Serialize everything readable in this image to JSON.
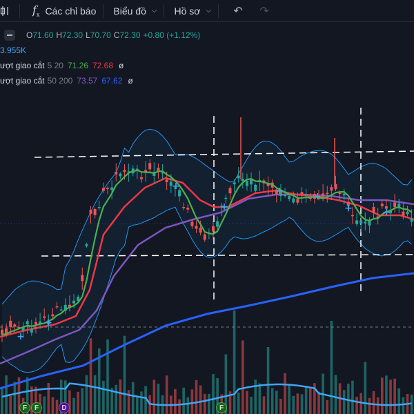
{
  "toolbar": {
    "indicators_label": "Các chỉ báo",
    "chart_label": "Biểu đồ",
    "profile_label": "Hồ sơ"
  },
  "legend": {
    "ohlc": {
      "o_label": "O",
      "o": "71.60",
      "h_label": "H",
      "h": "72.30",
      "l_label": "L",
      "l": "70.70",
      "c_label": "C",
      "c": "72.30",
      "change": "+0.80 (+1.12%)"
    },
    "volume": "3.955K",
    "ma1": {
      "name": "ượt giao cắt",
      "params": "5 20",
      "v1": "71.26",
      "v2": "72.68",
      "symbol": "ø"
    },
    "ma2": {
      "name": "ượt giao cắt",
      "params": "50 200",
      "v1": "73.57",
      "v2": "67.62",
      "symbol": "ø"
    }
  },
  "colors": {
    "background": "#131722",
    "up": "#26a69a",
    "down": "#ef5350",
    "ma5": "#4caf50",
    "ma20": "#f23645",
    "ma50": "#7e57c2",
    "ma200": "#2962ff",
    "bollinger": "#2196f3",
    "volume_ma": "#42a5f5"
  },
  "markers": [
    {
      "label": "F",
      "type": "F"
    },
    {
      "label": "F",
      "type": "F"
    },
    {
      "label": "D",
      "type": "D"
    },
    {
      "label": "F",
      "type": "F"
    }
  ],
  "chart_data": {
    "type": "candlestick",
    "bars": 98,
    "bollinger_bands": true,
    "moving_averages": [
      "MA5",
      "MA20",
      "MA50",
      "MA200"
    ],
    "volume": true,
    "approx_price_range": [
      55,
      80
    ]
  }
}
